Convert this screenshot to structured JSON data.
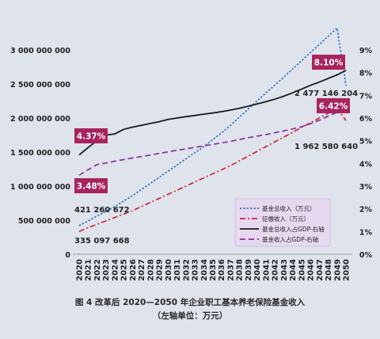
{
  "chart_data": {
    "type": "line",
    "x": [
      2020,
      2021,
      2022,
      2023,
      2024,
      2025,
      2026,
      2027,
      2028,
      2029,
      2030,
      2031,
      2032,
      2033,
      2034,
      2035,
      2036,
      2037,
      2038,
      2039,
      2040,
      2041,
      2042,
      2043,
      2044,
      2045,
      2046,
      2047,
      2048,
      2049,
      2050
    ],
    "left_axis": {
      "ylim": [
        0,
        3000000000
      ],
      "ticks": [
        0,
        500000000,
        1000000000,
        1500000000,
        2000000000,
        2500000000,
        3000000000
      ],
      "tick_labels": [
        "0",
        "500 000 000",
        "1 000 000 000",
        "1 500 000 000",
        "2 000 000 000",
        "2 500 000 000",
        "3 000 000 000"
      ]
    },
    "right_axis": {
      "ylim": [
        0,
        9
      ],
      "ticks": [
        0,
        1,
        2,
        3,
        4,
        5,
        6,
        7,
        8,
        9
      ],
      "tick_labels": [
        "0%",
        "1%",
        "2%",
        "3%",
        "4%",
        "5%",
        "6%",
        "7%",
        "8%",
        "9%"
      ]
    },
    "series": [
      {
        "name": "基金总收入（万元）",
        "axis": "left",
        "color": "#2a6bbf",
        "dash": "dot",
        "values": [
          421260672,
          490000000,
          560000000,
          630000000,
          700000000,
          780000000,
          860000000,
          950000000,
          1040000000,
          1130000000,
          1220000000,
          1310000000,
          1400000000,
          1490000000,
          1580000000,
          1680000000,
          1780000000,
          1890000000,
          2010000000,
          2130000000,
          2250000000,
          2370000000,
          2480000000,
          2600000000,
          2720000000,
          2840000000,
          2960000000,
          3080000000,
          3200000000,
          3320000000,
          2477146204
        ]
      },
      {
        "name": "征缴收入（万元）",
        "axis": "left",
        "color": "#c8283b",
        "dash": "dashdot",
        "values": [
          335097668,
          390000000,
          440000000,
          490000000,
          540000000,
          590000000,
          640000000,
          700000000,
          760000000,
          820000000,
          880000000,
          940000000,
          1000000000,
          1060000000,
          1120000000,
          1180000000,
          1240000000,
          1300000000,
          1370000000,
          1440000000,
          1510000000,
          1580000000,
          1650000000,
          1720000000,
          1790000000,
          1860000000,
          1930000000,
          2000000000,
          2070000000,
          2140000000,
          1962580640
        ]
      },
      {
        "name": "基金总收入占GDP-右轴",
        "axis": "right",
        "color": "#1a1a1a",
        "dash": "solid",
        "values": [
          4.37,
          4.7,
          5.0,
          5.25,
          5.3,
          5.5,
          5.6,
          5.68,
          5.76,
          5.84,
          5.94,
          6.0,
          6.06,
          6.11,
          6.17,
          6.22,
          6.28,
          6.35,
          6.43,
          6.52,
          6.62,
          6.72,
          6.83,
          6.96,
          7.11,
          7.27,
          7.44,
          7.58,
          7.74,
          7.9,
          8.1
        ]
      },
      {
        "name": "基金收入占GDP-右轴",
        "axis": "right",
        "color": "#8a2fa0",
        "dash": "dash",
        "values": [
          3.48,
          3.72,
          3.95,
          4.02,
          4.1,
          4.17,
          4.24,
          4.3,
          4.37,
          4.44,
          4.51,
          4.58,
          4.64,
          4.71,
          4.77,
          4.84,
          4.9,
          4.97,
          5.05,
          5.13,
          5.2,
          5.27,
          5.35,
          5.43,
          5.52,
          5.62,
          5.75,
          5.9,
          6.08,
          6.25,
          6.42
        ]
      }
    ],
    "annotations": {
      "box_437": "4.37%",
      "box_348": "3.48%",
      "box_810": "8.10%",
      "box_642": "6.42%",
      "label_start_total": "421 260 672",
      "label_start_levy": "335 097 668",
      "label_end_total": "2 477 146 204",
      "label_end_levy": "1 962 580 640"
    },
    "legend_placement": "lower-right",
    "grid": false
  },
  "caption": {
    "line1": "图 4   改革后 2020—2050 年企业职工基本养老保险基金收入",
    "line2": "（左轴单位：万元）"
  },
  "colors": {
    "background": "#dfe3ec",
    "legend_bg": "#e6d8ee",
    "annotation_box": "#a8245e"
  }
}
